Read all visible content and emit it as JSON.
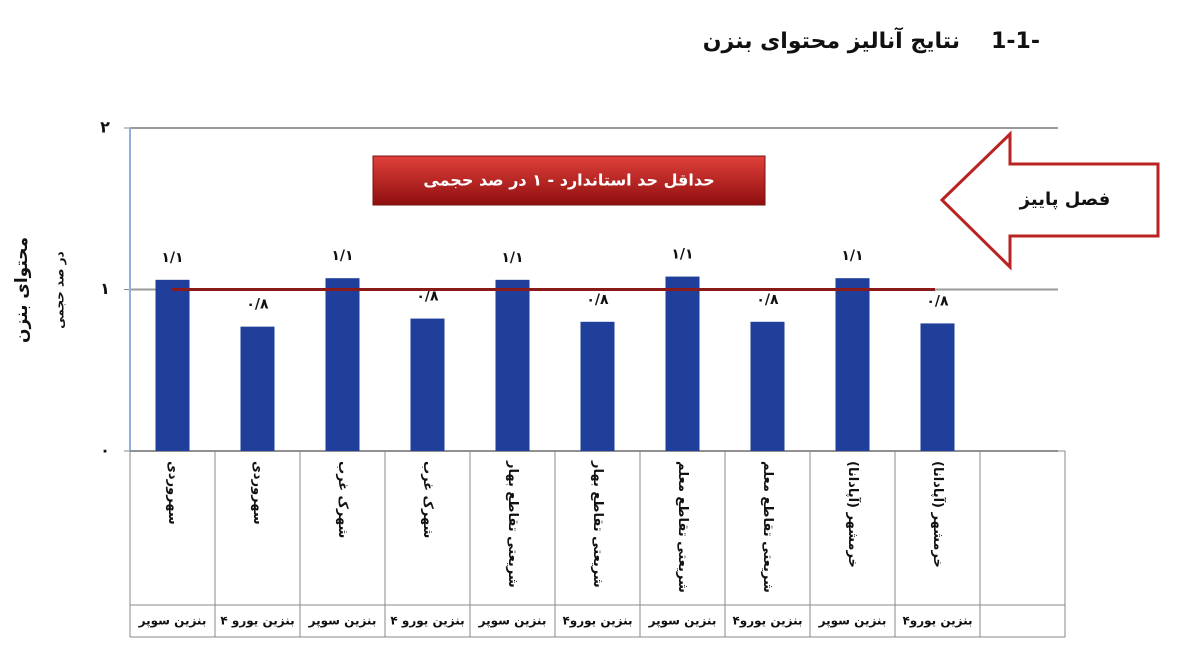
{
  "chart_data": {
    "type": "bar",
    "section_number": "1-1-",
    "title": "نتایج آنالیز محتوای بنزن",
    "y_label": "محتوای بنزن",
    "y_sublabel": "در صد حجمی",
    "annotation": "حداقل حد استاندارد - ۱ در صد حجمی",
    "arrow_label": "فصل پاییز",
    "reference_line": 1,
    "reference_color": "#8b1a1a",
    "categories": [
      "سهروردی",
      "سهروردی",
      "شهرک غرب",
      "شهرک غرب",
      "شریعتی تقاطع بهار",
      "شریعتی تقاطع بهار",
      "شریعتی تقاطع معلم",
      "شریعتی تقاطع معلم",
      "خرمشهر (آپادانا)",
      "خرمشهر (آپادانا)"
    ],
    "groups": [
      "بنزین سوپر",
      "بنزین یورو ۴",
      "بنزین سوپر",
      "بنزین یورو ۴",
      "بنزین سوپر",
      "بنزین یورو۴",
      "بنزین سوپر",
      "بنزین یورو۴",
      "بنزین سوپر",
      "بنزین یورو۴"
    ],
    "values": [
      1.06,
      0.77,
      1.07,
      0.82,
      1.06,
      0.8,
      1.08,
      0.8,
      1.07,
      0.79
    ],
    "value_labels": [
      "۱/۱",
      "۰/۸",
      "۱/۱",
      "۰/۸",
      "۱/۱",
      "۰/۸",
      "۱/۱",
      "۰/۸",
      "۱/۱",
      "۰/۸"
    ],
    "color": "#1f3f9a",
    "ylim": [
      0,
      2
    ],
    "yticks": [
      {
        "value": 0,
        "label": "۰"
      },
      {
        "value": 1,
        "label": "۱"
      },
      {
        "value": 2,
        "label": "۲"
      }
    ],
    "grid": true
  }
}
